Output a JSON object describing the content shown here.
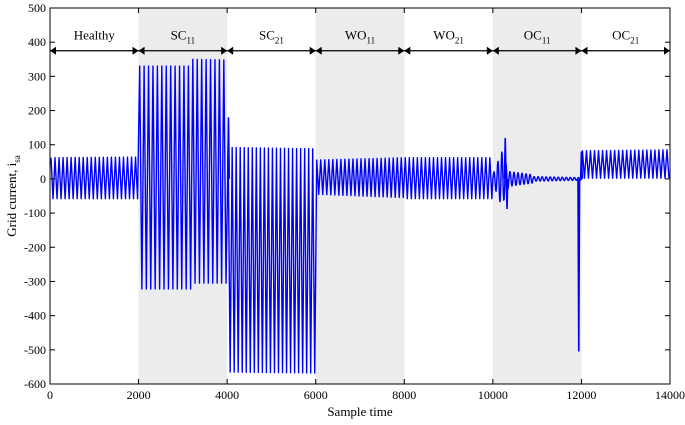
{
  "chart_data": {
    "type": "line",
    "xlabel": "Sample time",
    "ylabel": "Grid current, i",
    "ylabel_sub": "sa",
    "xlim": [
      0,
      14000
    ],
    "ylim": [
      -600,
      500
    ],
    "xticks": [
      0,
      2000,
      4000,
      6000,
      8000,
      10000,
      12000,
      14000
    ],
    "yticks": [
      -600,
      -500,
      -400,
      -300,
      -200,
      -100,
      0,
      100,
      200,
      300,
      400,
      500
    ],
    "grid": false,
    "segment_arrow_y": 375,
    "segments": [
      {
        "label": "Healthy",
        "sub": "",
        "start": 0,
        "end": 2000,
        "shaded": false
      },
      {
        "label": "SC",
        "sub": "11",
        "start": 2000,
        "end": 4000,
        "shaded": true
      },
      {
        "label": "SC",
        "sub": "21",
        "start": 4000,
        "end": 6000,
        "shaded": false
      },
      {
        "label": "WO",
        "sub": "11",
        "start": 6000,
        "end": 8000,
        "shaded": true
      },
      {
        "label": "WO",
        "sub": "21",
        "start": 8000,
        "end": 10000,
        "shaded": false
      },
      {
        "label": "OC",
        "sub": "11",
        "start": 10000,
        "end": 12000,
        "shaded": true
      },
      {
        "label": "OC",
        "sub": "21",
        "start": 12000,
        "end": 14000,
        "shaded": false
      }
    ],
    "series": [
      {
        "color": "#0000ff",
        "segments": [
          {
            "start": 0,
            "end": 2000,
            "cycles": 22,
            "upper": [
              62,
              64
            ],
            "lower": [
              -58,
              -58
            ]
          },
          {
            "start": 2000,
            "end": 3200,
            "cycles": 12,
            "upper": [
              330,
              330
            ],
            "lower": [
              -322,
              -322
            ]
          },
          {
            "start": 3200,
            "end": 4000,
            "cycles": 8,
            "upper": [
              350,
              348
            ],
            "lower": [
              -305,
              -305
            ]
          },
          {
            "start": 4000,
            "end": 6000,
            "cycles": 22,
            "upper": [
              92,
              88
            ],
            "lower": [
              -565,
              -568
            ]
          },
          {
            "start": 6000,
            "end": 8000,
            "cycles": 22,
            "upper": [
              55,
              62
            ],
            "lower": [
              -45,
              -55
            ]
          },
          {
            "start": 8000,
            "end": 10000,
            "cycles": 22,
            "upper": [
              62,
              62
            ],
            "lower": [
              -58,
              -58
            ]
          },
          {
            "start": 10000,
            "end": 12000,
            "cycles": 22,
            "type": "transient"
          },
          {
            "start": 12000,
            "end": 14000,
            "cycles": 22,
            "upper": [
              82,
              85
            ],
            "lower": [
              2,
              2
            ]
          }
        ],
        "spikes": [
          {
            "x": 4030,
            "y": 180
          },
          {
            "x": 10280,
            "y": 120
          },
          {
            "x": 10320,
            "y": -88
          },
          {
            "x": 11940,
            "y": -505
          },
          {
            "x": 12000,
            "y": 80
          }
        ]
      }
    ]
  }
}
